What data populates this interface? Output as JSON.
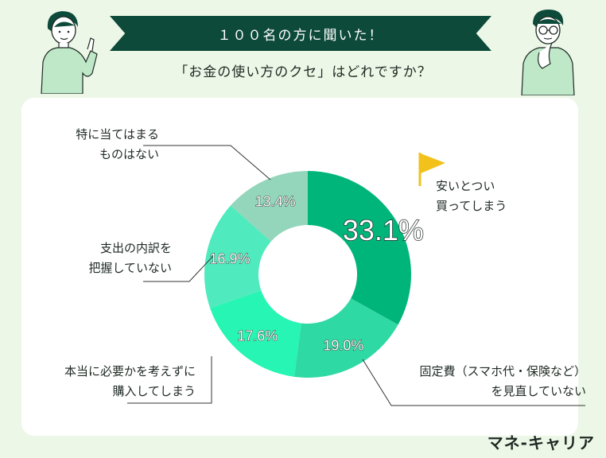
{
  "header": {
    "banner": "１００名の方に聞いた！",
    "question": "「お金の使い方のクセ」はどれですか？"
  },
  "brand": "マネ-キャリア",
  "chart_data": {
    "type": "pie",
    "donut": true,
    "categories": [
      "安いとつい買ってしまう",
      "固定費（スマホ代・保険など）を見直していない",
      "本当に必要かを考えずに購入してしまう",
      "支出の内訳を把握していない",
      "特に当てはまるものはない"
    ],
    "values": [
      33.1,
      19.0,
      17.6,
      16.9,
      13.4
    ],
    "value_labels": [
      "33.1%",
      "19.0%",
      "17.6%",
      "16.9%",
      "13.4%"
    ],
    "colors": [
      "#00b57a",
      "#2fd9a4",
      "#26f5b4",
      "#4feabd",
      "#93d6bb"
    ],
    "label_lines": [
      [
        "安いとつい",
        "買ってしまう"
      ],
      [
        "固定費（スマホ代・保険など）",
        "を見直していない"
      ],
      [
        "本当に必要かを考えずに",
        "購入してしまう"
      ],
      [
        "支出の内訳を",
        "把握していない"
      ],
      [
        "特に当てはまる",
        "ものはない"
      ]
    ]
  }
}
